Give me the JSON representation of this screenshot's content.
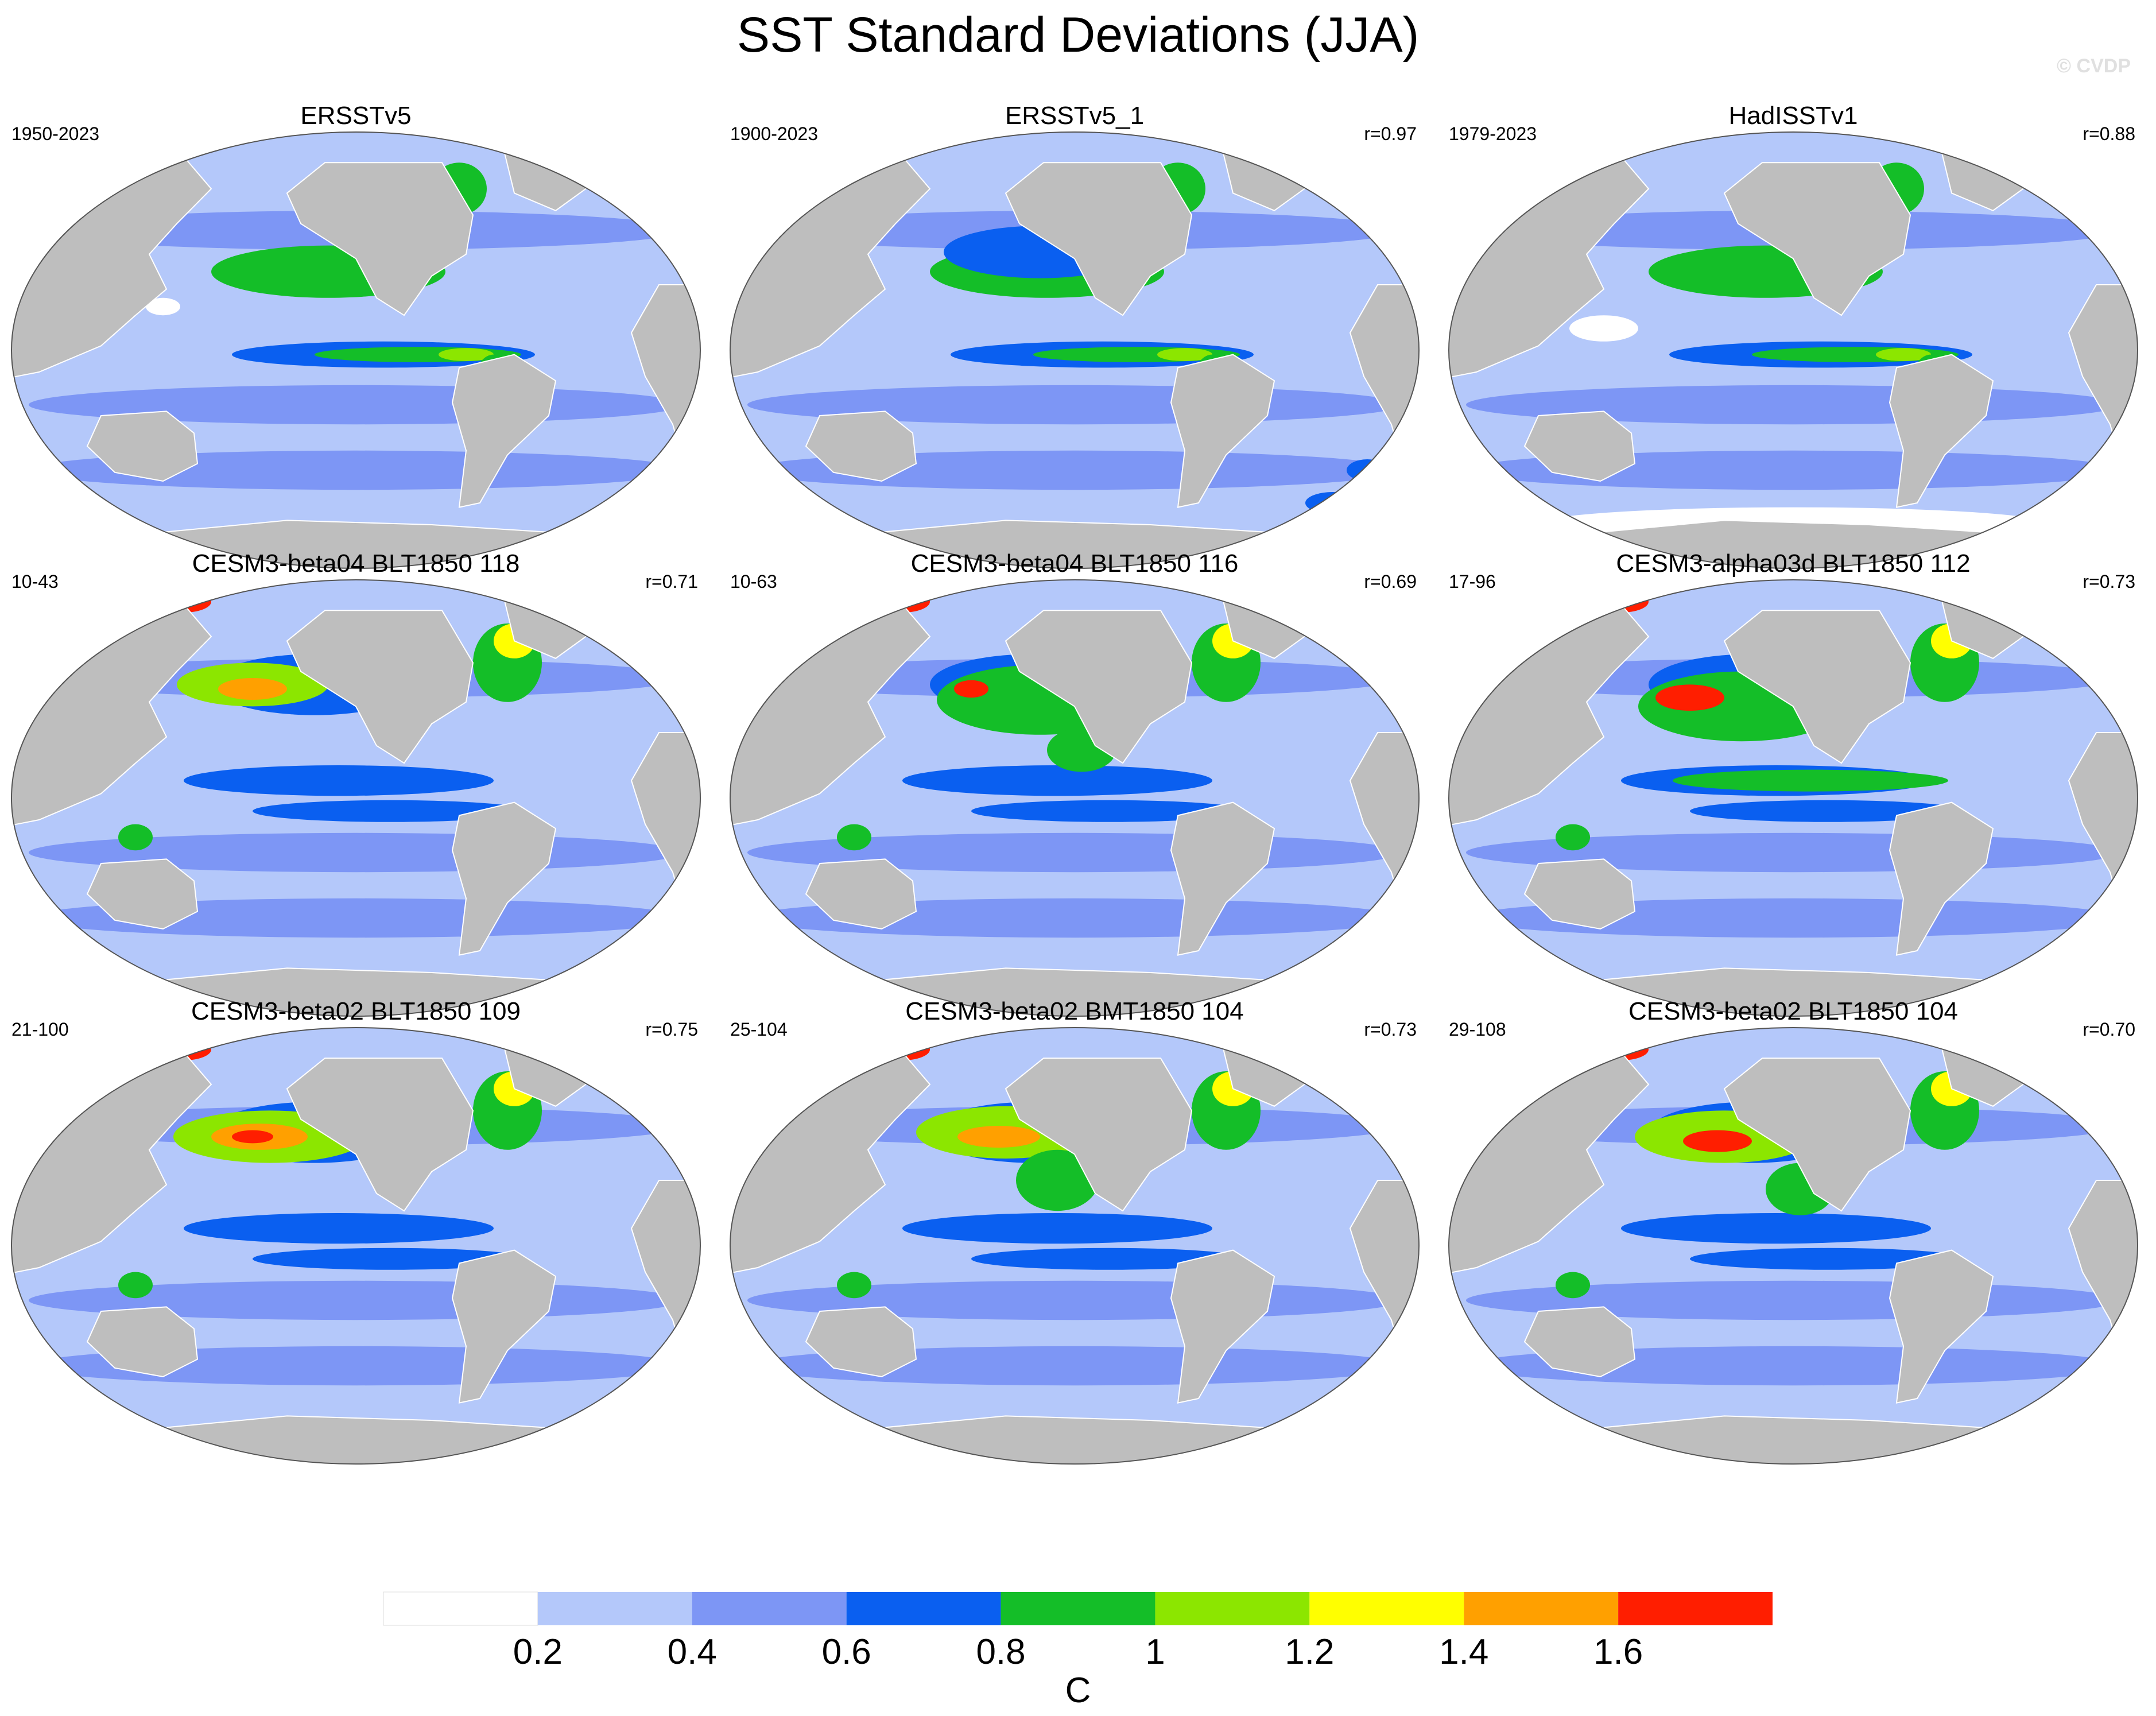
{
  "title": "SST Standard Deviations (JJA)",
  "watermark": "© CVDP",
  "colors": {
    "ocean_levels": [
      "#ffffff",
      "#b4c8fa",
      "#7d96f5",
      "#6e91f0",
      "#0a5ff0",
      "#14be28",
      "#8ce600",
      "#ffff00",
      "#ffa000",
      "#ff1e00"
    ],
    "land": "#bebebe",
    "outline": "#555555"
  },
  "panels": [
    {
      "title": "ERSSTv5",
      "period": "1950-2023",
      "r": ""
    },
    {
      "title": "ERSSTv5_1",
      "period": "1900-2023",
      "r": "r=0.97"
    },
    {
      "title": "HadISSTv1",
      "period": "1979-2023",
      "r": "r=0.88"
    },
    {
      "title": "CESM3-beta04 BLT1850 118",
      "period": "10-43",
      "r": "r=0.71"
    },
    {
      "title": "CESM3-beta04 BLT1850 116",
      "period": "10-63",
      "r": "r=0.69"
    },
    {
      "title": "CESM3-alpha03d BLT1850 112",
      "period": "17-96",
      "r": "r=0.73"
    },
    {
      "title": "CESM3-beta02 BLT1850 109",
      "period": "21-100",
      "r": "r=0.75"
    },
    {
      "title": "CESM3-beta02 BMT1850 104",
      "period": "25-104",
      "r": "r=0.73"
    },
    {
      "title": "CESM3-beta02 BLT1850 104",
      "period": "29-108",
      "r": "r=0.70"
    }
  ],
  "colorbar": {
    "colors": [
      "#ffffff",
      "#b4c8fa",
      "#7d96f5",
      "#0a5ff0",
      "#14be28",
      "#8ce600",
      "#ffff00",
      "#ffa000",
      "#ff1e00"
    ],
    "labels": [
      "0.2",
      "0.4",
      "0.6",
      "0.8",
      "1",
      "1.2",
      "1.4",
      "1.6"
    ],
    "unit": "C"
  }
}
